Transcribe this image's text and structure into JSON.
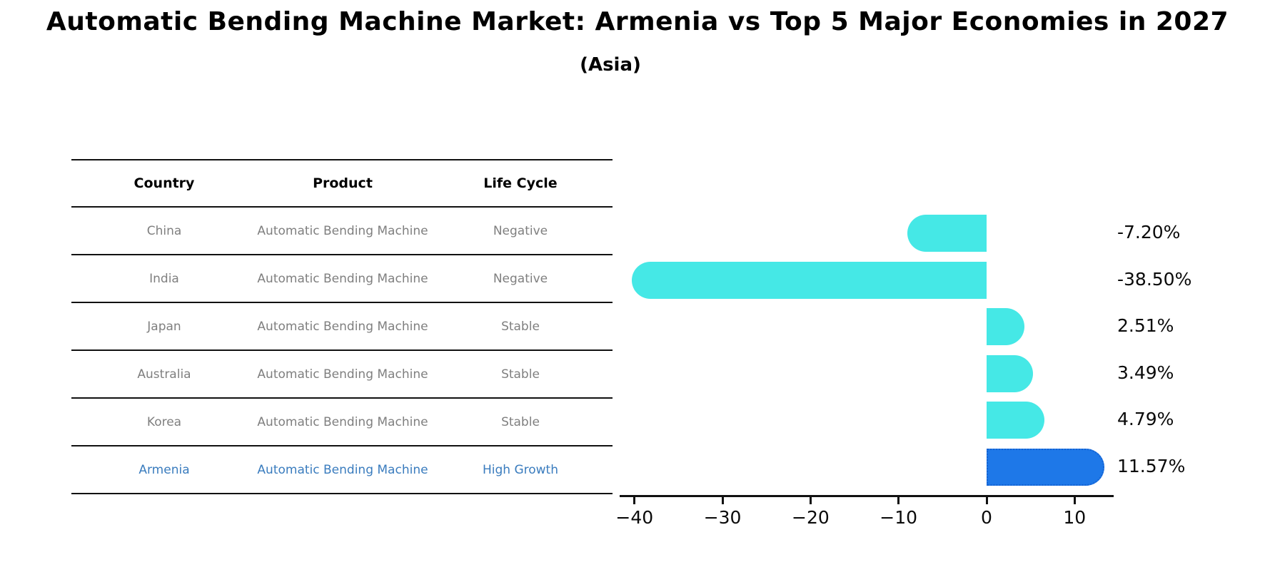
{
  "chart_data": {
    "type": "bar",
    "orientation": "horizontal",
    "title": "Automatic Bending Machine Market: Armenia vs Top 5 Major Economies in 2027",
    "subtitle": "(Asia)",
    "categories": [
      "China",
      "India",
      "Japan",
      "Australia",
      "Korea",
      "Armenia"
    ],
    "values": [
      -7.2,
      -38.5,
      2.51,
      3.49,
      4.79,
      11.57
    ],
    "value_labels": [
      "-7.20%",
      "-38.50%",
      "2.51%",
      "3.49%",
      "4.79%",
      "11.57%"
    ],
    "x_ticks": [
      -40,
      -30,
      -20,
      -10,
      0,
      10
    ],
    "x_tick_labels": [
      "−40",
      "−30",
      "−20",
      "−10",
      "0",
      "10"
    ],
    "xlim": [
      -41.7,
      14.4
    ],
    "grid": false,
    "legend": false,
    "bar_color": "#45E8E6",
    "highlight_index": 5,
    "highlight_bar_color": "#1E78E8",
    "highlight_border_color": "#1462D2"
  },
  "table": {
    "headers": [
      "Country",
      "Product",
      "Life Cycle"
    ],
    "rows": [
      {
        "country": "China",
        "product": "Automatic Bending Machine",
        "life_cycle": "Negative",
        "highlight": false
      },
      {
        "country": "India",
        "product": "Automatic Bending Machine",
        "life_cycle": "Negative",
        "highlight": false
      },
      {
        "country": "Japan",
        "product": "Automatic Bending Machine",
        "life_cycle": "Stable",
        "highlight": false
      },
      {
        "country": "Australia",
        "product": "Automatic Bending Machine",
        "life_cycle": "Stable",
        "highlight": false
      },
      {
        "country": "Korea",
        "product": "Automatic Bending Machine",
        "life_cycle": "Stable",
        "highlight": false
      },
      {
        "country": "Armenia",
        "product": "Automatic Bending Machine",
        "life_cycle": "High Growth",
        "highlight": true
      }
    ]
  },
  "colors": {
    "row_text_gray": "#7f7f7f",
    "highlight_text_blue": "#3a7cbe",
    "table_line": "#111111",
    "axis_line": "#111111",
    "background": "#ffffff"
  }
}
